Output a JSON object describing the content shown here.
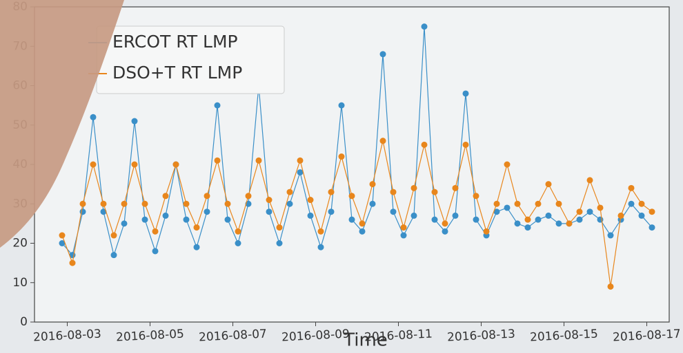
{
  "chart_data": {
    "type": "line",
    "x_label": "Time",
    "x": [
      "2016-08-02 21:00",
      "2016-08-03 03:00",
      "2016-08-03 09:00",
      "2016-08-03 15:00",
      "2016-08-03 21:00",
      "2016-08-04 03:00",
      "2016-08-04 09:00",
      "2016-08-04 15:00",
      "2016-08-04 21:00",
      "2016-08-05 03:00",
      "2016-08-05 09:00",
      "2016-08-05 15:00",
      "2016-08-05 21:00",
      "2016-08-06 03:00",
      "2016-08-06 09:00",
      "2016-08-06 15:00",
      "2016-08-06 21:00",
      "2016-08-07 03:00",
      "2016-08-07 09:00",
      "2016-08-07 15:00",
      "2016-08-07 21:00",
      "2016-08-08 03:00",
      "2016-08-08 09:00",
      "2016-08-08 15:00",
      "2016-08-08 21:00",
      "2016-08-09 03:00",
      "2016-08-09 09:00",
      "2016-08-09 15:00",
      "2016-08-09 21:00",
      "2016-08-10 03:00",
      "2016-08-10 09:00",
      "2016-08-10 15:00",
      "2016-08-10 21:00",
      "2016-08-11 03:00",
      "2016-08-11 09:00",
      "2016-08-11 15:00",
      "2016-08-11 21:00",
      "2016-08-12 03:00",
      "2016-08-12 09:00",
      "2016-08-12 15:00",
      "2016-08-12 21:00",
      "2016-08-13 03:00",
      "2016-08-13 09:00",
      "2016-08-13 15:00",
      "2016-08-13 21:00",
      "2016-08-14 03:00",
      "2016-08-14 09:00",
      "2016-08-14 15:00",
      "2016-08-14 21:00",
      "2016-08-15 03:00",
      "2016-08-15 09:00",
      "2016-08-15 15:00",
      "2016-08-15 21:00",
      "2016-08-16 03:00",
      "2016-08-16 09:00",
      "2016-08-16 15:00",
      "2016-08-16 21:00",
      "2016-08-17 03:00"
    ],
    "series": [
      {
        "name": "ERCOT RT LMP",
        "color": "#3a8fc8",
        "values": [
          20,
          17,
          28,
          52,
          28,
          17,
          25,
          51,
          26,
          18,
          27,
          40,
          26,
          19,
          28,
          55,
          26,
          20,
          30,
          60,
          28,
          20,
          30,
          38,
          27,
          19,
          28,
          55,
          26,
          23,
          30,
          68,
          28,
          22,
          27,
          75,
          26,
          23,
          27,
          58,
          26,
          22,
          28,
          29,
          25,
          24,
          26,
          27,
          25,
          25,
          26,
          28,
          26,
          22,
          26,
          30,
          27,
          24
        ]
      },
      {
        "name": "DSO+T RT LMP",
        "color": "#e8861c",
        "values": [
          22,
          15,
          30,
          40,
          30,
          22,
          30,
          40,
          30,
          23,
          32,
          40,
          30,
          24,
          32,
          41,
          30,
          23,
          32,
          41,
          31,
          24,
          33,
          41,
          31,
          23,
          33,
          42,
          32,
          25,
          35,
          46,
          33,
          24,
          34,
          45,
          33,
          25,
          34,
          45,
          32,
          23,
          30,
          40,
          30,
          26,
          30,
          35,
          30,
          25,
          28,
          36,
          29,
          9,
          27,
          34,
          30,
          28
        ]
      }
    ],
    "xlim": [
      "2016-08-02 05:00",
      "2016-08-17 13:00"
    ],
    "xticks": [
      "2016-08-03",
      "2016-08-05",
      "2016-08-07",
      "2016-08-09",
      "2016-08-11",
      "2016-08-13",
      "2016-08-15",
      "2016-08-17"
    ],
    "ylim": [
      0,
      80
    ],
    "yticks": [
      0,
      10,
      20,
      30,
      40,
      50,
      60,
      70,
      80
    ],
    "legend": "upper left"
  }
}
